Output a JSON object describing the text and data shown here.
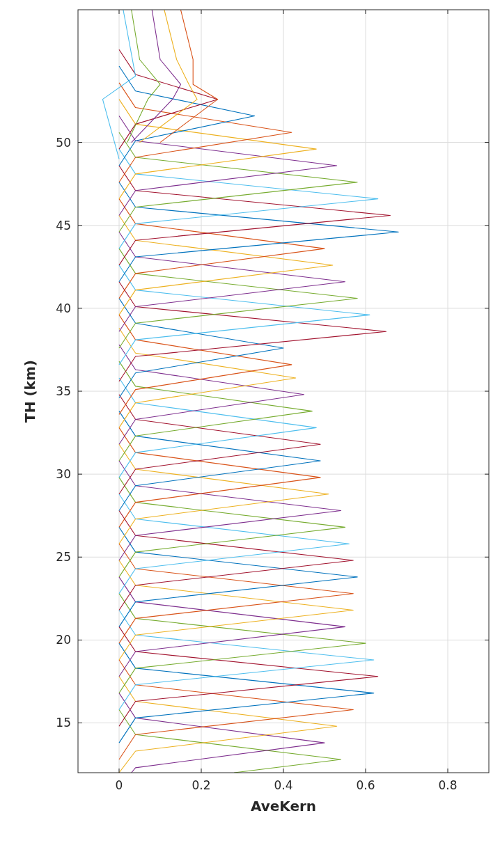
{
  "chart_data": {
    "type": "line",
    "xlabel": "AveKern",
    "ylabel": "TH (km)",
    "xlim": [
      -0.1,
      0.9
    ],
    "ylim": [
      12,
      58
    ],
    "xticks": [
      0,
      0.2,
      0.4,
      0.6,
      0.8
    ],
    "yticks": [
      15,
      20,
      25,
      30,
      35,
      40,
      45,
      50
    ],
    "grid": true,
    "series": [
      {
        "color": "#77ac30",
        "x": [
          0.28,
          0.54,
          0.04,
          0
        ],
        "values": [
          12,
          12.8,
          14.3,
          15.8
        ]
      },
      {
        "color": "#7e2f8e",
        "x": [
          0.03,
          0.04,
          0.5,
          0.04,
          0
        ],
        "values": [
          12,
          12.3,
          13.8,
          15.3,
          16.8
        ]
      },
      {
        "color": "#edb120",
        "x": [
          0,
          0.04,
          0.53,
          0.04,
          0
        ],
        "values": [
          12,
          13.3,
          14.8,
          16.3,
          17.8
        ]
      },
      {
        "color": "#d95319",
        "x": [
          0,
          0.04,
          0.57,
          0.04,
          0
        ],
        "values": [
          12.8,
          14.3,
          15.8,
          17.3,
          18.8
        ]
      },
      {
        "color": "#0072bd",
        "x": [
          0,
          0.04,
          0.62,
          0.04,
          0
        ],
        "values": [
          13.8,
          15.3,
          16.8,
          18.3,
          19.8
        ]
      },
      {
        "color": "#a2142f",
        "x": [
          0,
          0.04,
          0.63,
          0.04,
          0
        ],
        "values": [
          14.8,
          16.3,
          17.8,
          19.3,
          20.8
        ]
      },
      {
        "color": "#4dbeee",
        "x": [
          0,
          0.04,
          0.62,
          0.04,
          0
        ],
        "values": [
          15.8,
          17.3,
          18.8,
          20.3,
          21.8
        ]
      },
      {
        "color": "#77ac30",
        "x": [
          0,
          0.04,
          0.6,
          0.04,
          0
        ],
        "values": [
          16.8,
          18.3,
          19.8,
          21.3,
          22.8
        ]
      },
      {
        "color": "#7e2f8e",
        "x": [
          0,
          0.04,
          0.55,
          0.04,
          0
        ],
        "values": [
          17.8,
          19.3,
          20.8,
          22.3,
          23.8
        ]
      },
      {
        "color": "#edb120",
        "x": [
          0,
          0.04,
          0.57,
          0.04,
          0
        ],
        "values": [
          18.8,
          20.3,
          21.8,
          23.3,
          24.8
        ]
      },
      {
        "color": "#d95319",
        "x": [
          0,
          0.04,
          0.57,
          0.04,
          0
        ],
        "values": [
          19.8,
          21.3,
          22.8,
          24.3,
          25.8
        ]
      },
      {
        "color": "#0072bd",
        "x": [
          0,
          0.04,
          0.58,
          0.04,
          0
        ],
        "values": [
          20.8,
          22.3,
          23.8,
          25.3,
          26.8
        ]
      },
      {
        "color": "#a2142f",
        "x": [
          0,
          0.04,
          0.57,
          0.04,
          0
        ],
        "values": [
          21.8,
          23.3,
          24.8,
          26.3,
          27.8
        ]
      },
      {
        "color": "#4dbeee",
        "x": [
          0,
          0.04,
          0.56,
          0.04,
          0
        ],
        "values": [
          22.8,
          24.3,
          25.8,
          27.3,
          28.8
        ]
      },
      {
        "color": "#77ac30",
        "x": [
          0,
          0.04,
          0.55,
          0.04,
          0
        ],
        "values": [
          23.8,
          25.3,
          26.8,
          28.3,
          29.8
        ]
      },
      {
        "color": "#7e2f8e",
        "x": [
          0,
          0.04,
          0.54,
          0.04,
          0
        ],
        "values": [
          24.8,
          26.3,
          27.8,
          29.3,
          30.8
        ]
      },
      {
        "color": "#edb120",
        "x": [
          0,
          0.04,
          0.51,
          0.04,
          0
        ],
        "values": [
          25.8,
          27.3,
          28.8,
          30.3,
          31.8
        ]
      },
      {
        "color": "#d95319",
        "x": [
          0,
          0.04,
          0.49,
          0.04,
          0
        ],
        "values": [
          26.8,
          28.3,
          29.8,
          31.3,
          32.8
        ]
      },
      {
        "color": "#0072bd",
        "x": [
          0,
          0.04,
          0.49,
          0.04,
          0
        ],
        "values": [
          27.8,
          29.3,
          30.8,
          32.3,
          33.8
        ]
      },
      {
        "color": "#a2142f",
        "x": [
          0,
          0.04,
          0.49,
          0.04,
          0
        ],
        "values": [
          28.8,
          30.3,
          31.8,
          33.3,
          34.8
        ]
      },
      {
        "color": "#4dbeee",
        "x": [
          0,
          0.04,
          0.48,
          0.04,
          0
        ],
        "values": [
          29.8,
          31.3,
          32.8,
          34.3,
          35.8
        ]
      },
      {
        "color": "#77ac30",
        "x": [
          0,
          0.04,
          0.47,
          0.04,
          0
        ],
        "values": [
          30.8,
          32.3,
          33.8,
          35.3,
          36.8
        ]
      },
      {
        "color": "#7e2f8e",
        "x": [
          0,
          0.04,
          0.45,
          0.04,
          0
        ],
        "values": [
          31.8,
          33.3,
          34.8,
          36.3,
          37.8
        ]
      },
      {
        "color": "#edb120",
        "x": [
          0,
          0.04,
          0.43,
          0.04,
          0
        ],
        "values": [
          32.8,
          34.3,
          35.8,
          37.3,
          38.8
        ]
      },
      {
        "color": "#d95319",
        "x": [
          0,
          0.04,
          0.42,
          0.04,
          0
        ],
        "values": [
          33.6,
          35.1,
          36.6,
          38.1,
          39.6
        ]
      },
      {
        "color": "#0072bd",
        "x": [
          0,
          0.04,
          0.4,
          0.04,
          0
        ],
        "values": [
          34.6,
          36.1,
          37.6,
          39.1,
          40.6
        ]
      },
      {
        "color": "#a2142f",
        "x": [
          0,
          0.04,
          0.65,
          0.04,
          0
        ],
        "values": [
          35.6,
          37.1,
          38.6,
          40.1,
          41.6
        ]
      },
      {
        "color": "#4dbeee",
        "x": [
          0,
          0.04,
          0.61,
          0.04,
          0
        ],
        "values": [
          36.6,
          38.1,
          39.6,
          41.1,
          42.6
        ]
      },
      {
        "color": "#77ac30",
        "x": [
          0,
          0.04,
          0.58,
          0.04,
          0
        ],
        "values": [
          37.6,
          39.1,
          40.6,
          42.1,
          43.6
        ]
      },
      {
        "color": "#7e2f8e",
        "x": [
          0,
          0.04,
          0.55,
          0.04,
          0
        ],
        "values": [
          38.6,
          40.1,
          41.6,
          43.1,
          44.6
        ]
      },
      {
        "color": "#edb120",
        "x": [
          0,
          0.04,
          0.52,
          0.04,
          0
        ],
        "values": [
          39.6,
          41.1,
          42.6,
          44.1,
          45.6
        ]
      },
      {
        "color": "#d95319",
        "x": [
          0,
          0.04,
          0.5,
          0.04,
          0
        ],
        "values": [
          40.6,
          42.1,
          43.6,
          45.1,
          46.6
        ]
      },
      {
        "color": "#0072bd",
        "x": [
          0,
          0.04,
          0.68,
          0.04,
          0
        ],
        "values": [
          41.6,
          43.1,
          44.6,
          46.1,
          47.6
        ]
      },
      {
        "color": "#a2142f",
        "x": [
          0,
          0.04,
          0.66,
          0.04,
          0
        ],
        "values": [
          42.6,
          44.1,
          45.6,
          47.1,
          48.6
        ]
      },
      {
        "color": "#4dbeee",
        "x": [
          0,
          0.04,
          0.63,
          0.04,
          0
        ],
        "values": [
          43.6,
          45.1,
          46.6,
          48.1,
          49.6
        ]
      },
      {
        "color": "#77ac30",
        "x": [
          0,
          0.04,
          0.58,
          0.04,
          0
        ],
        "values": [
          44.6,
          46.1,
          47.6,
          49.1,
          50.6
        ]
      },
      {
        "color": "#7e2f8e",
        "x": [
          0,
          0.04,
          0.53,
          0.04,
          0
        ],
        "values": [
          45.6,
          47.1,
          48.6,
          50.1,
          51.6
        ]
      },
      {
        "color": "#edb120",
        "x": [
          0,
          0.04,
          0.48,
          0.04,
          0
        ],
        "values": [
          46.6,
          48.1,
          49.6,
          51.1,
          52.6
        ]
      },
      {
        "color": "#d95319",
        "x": [
          0,
          0.04,
          0.42,
          0.04,
          0
        ],
        "values": [
          47.6,
          49.1,
          50.6,
          52.1,
          53.6
        ]
      },
      {
        "color": "#0072bd",
        "x": [
          0,
          0.04,
          0.33,
          0.04,
          0
        ],
        "values": [
          48.6,
          50.1,
          51.6,
          53.1,
          54.6
        ]
      },
      {
        "color": "#a2142f",
        "x": [
          0,
          0.04,
          0.24,
          0.04,
          0
        ],
        "values": [
          49.6,
          51.1,
          52.6,
          54.1,
          55.6
        ]
      },
      {
        "color": "#4dbeee",
        "x": [
          0,
          -0.04,
          0.04,
          0.01
        ],
        "values": [
          49,
          52.6,
          54,
          58
        ]
      },
      {
        "color": "#77ac30",
        "x": [
          0.02,
          0.07,
          0.1,
          0.05,
          0.03
        ],
        "values": [
          50,
          52.6,
          53.5,
          55,
          58
        ]
      },
      {
        "color": "#7e2f8e",
        "x": [
          0.03,
          0.13,
          0.15,
          0.1,
          0.08
        ],
        "values": [
          50,
          52.6,
          53.5,
          55,
          58
        ]
      },
      {
        "color": "#edb120",
        "x": [
          0.05,
          0.19,
          0.17,
          0.14,
          0.11
        ],
        "values": [
          50,
          52.6,
          53.5,
          55,
          58
        ]
      },
      {
        "color": "#d95319",
        "x": [
          0.1,
          0.24,
          0.18,
          0.18,
          0.15
        ],
        "values": [
          50,
          52.6,
          53.5,
          55,
          58
        ]
      }
    ]
  }
}
